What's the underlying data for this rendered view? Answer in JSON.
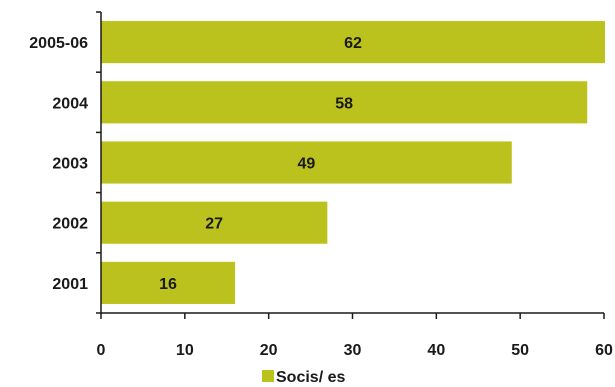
{
  "chart_data": {
    "type": "bar",
    "orientation": "horizontal",
    "categories": [
      "2005-06",
      "2004",
      "2003",
      "2002",
      "2001"
    ],
    "series": [
      {
        "name": "Socis/ es",
        "values": [
          62,
          58,
          49,
          27,
          16
        ],
        "color": "#bcc21d"
      }
    ],
    "data_labels": [
      "62",
      "58",
      "49",
      "27",
      "16"
    ],
    "xlim": [
      0,
      60
    ],
    "xticks": [
      0,
      10,
      20,
      30,
      40,
      50,
      60
    ],
    "title": "",
    "xlabel": "",
    "ylabel": "",
    "grid": false,
    "legend_position": "bottom"
  }
}
